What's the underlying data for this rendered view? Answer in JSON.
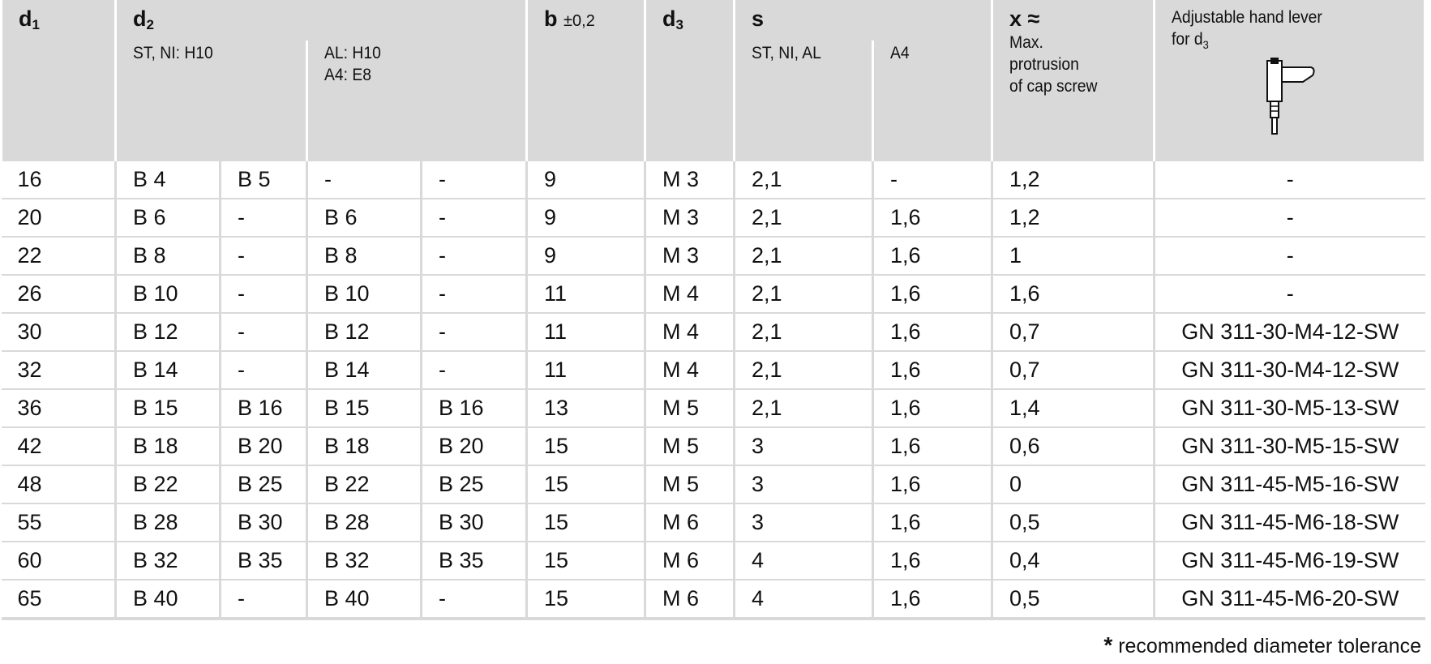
{
  "header": {
    "d1": {
      "label": "d",
      "sub": "1"
    },
    "d2": {
      "label": "d",
      "sub": "2",
      "groups": [
        {
          "lines": [
            "ST, NI: H10"
          ]
        },
        {
          "lines": [
            "AL: H10",
            "A4: E8"
          ]
        }
      ]
    },
    "b": {
      "label": "b",
      "note": "±0,2"
    },
    "d3": {
      "label": "d",
      "sub": "3"
    },
    "s": {
      "label": "s",
      "groups": [
        {
          "lines": [
            "ST, NI, AL"
          ]
        },
        {
          "lines": [
            "A4"
          ]
        }
      ]
    },
    "x": {
      "label": "x ≈",
      "lines": [
        "Max.",
        "protrusion",
        "of cap screw"
      ]
    },
    "lever": {
      "line1": "Adjustable hand lever",
      "line2": "for d",
      "sub": "3"
    }
  },
  "rows": [
    [
      "16",
      "B 4",
      "B 5",
      "-",
      "-",
      "9",
      "M 3",
      "2,1",
      "-",
      "1,2",
      "-"
    ],
    [
      "20",
      "B 6",
      "-",
      "B 6",
      "-",
      "9",
      "M 3",
      "2,1",
      "1,6",
      "1,2",
      "-"
    ],
    [
      "22",
      "B 8",
      "-",
      "B 8",
      "-",
      "9",
      "M 3",
      "2,1",
      "1,6",
      "1",
      "-"
    ],
    [
      "26",
      "B 10",
      "-",
      "B 10",
      "-",
      "11",
      "M 4",
      "2,1",
      "1,6",
      "1,6",
      "-"
    ],
    [
      "30",
      "B 12",
      "-",
      "B 12",
      "-",
      "11",
      "M 4",
      "2,1",
      "1,6",
      "0,7",
      "GN 311-30-M4-12-SW"
    ],
    [
      "32",
      "B 14",
      "-",
      "B 14",
      "-",
      "11",
      "M 4",
      "2,1",
      "1,6",
      "0,7",
      "GN 311-30-M4-12-SW"
    ],
    [
      "36",
      "B 15",
      "B 16",
      "B 15",
      "B 16",
      "13",
      "M 5",
      "2,1",
      "1,6",
      "1,4",
      "GN 311-30-M5-13-SW"
    ],
    [
      "42",
      "B 18",
      "B 20",
      "B 18",
      "B 20",
      "15",
      "M 5",
      "3",
      "1,6",
      "0,6",
      "GN 311-30-M5-15-SW"
    ],
    [
      "48",
      "B 22",
      "B 25",
      "B 22",
      "B 25",
      "15",
      "M 5",
      "3",
      "1,6",
      "0",
      "GN 311-45-M5-16-SW"
    ],
    [
      "55",
      "B 28",
      "B 30",
      "B 28",
      "B 30",
      "15",
      "M 6",
      "3",
      "1,6",
      "0,5",
      "GN 311-45-M6-18-SW"
    ],
    [
      "60",
      "B 32",
      "B 35",
      "B 32",
      "B 35",
      "15",
      "M 6",
      "4",
      "1,6",
      "0,4",
      "GN 311-45-M6-19-SW"
    ],
    [
      "65",
      "B 40",
      "-",
      "B 40",
      "-",
      "15",
      "M 6",
      "4",
      "1,6",
      "0,5",
      "GN 311-45-M6-20-SW"
    ]
  ],
  "footnote": {
    "mark": "*",
    "text": "recommended diameter tolerance"
  }
}
